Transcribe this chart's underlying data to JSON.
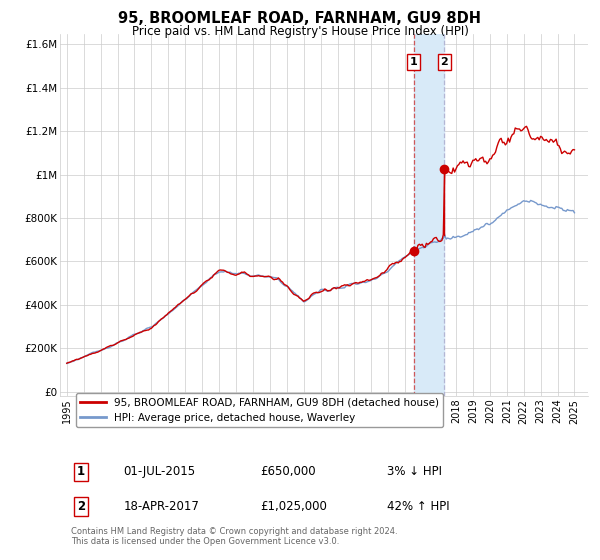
{
  "title": "95, BROOMLEAF ROAD, FARNHAM, GU9 8DH",
  "subtitle": "Price paid vs. HM Land Registry's House Price Index (HPI)",
  "ylabel_ticks": [
    "£0",
    "£200K",
    "£400K",
    "£600K",
    "£800K",
    "£1M",
    "£1.2M",
    "£1.4M",
    "£1.6M"
  ],
  "ytick_values": [
    0,
    200000,
    400000,
    600000,
    800000,
    1000000,
    1200000,
    1400000,
    1600000
  ],
  "ylim": [
    -20000,
    1650000
  ],
  "xlim_year": [
    1994.6,
    2025.8
  ],
  "xtick_years": [
    1995,
    1996,
    1997,
    1998,
    1999,
    2000,
    2001,
    2002,
    2003,
    2004,
    2005,
    2006,
    2007,
    2008,
    2009,
    2010,
    2011,
    2012,
    2013,
    2014,
    2015,
    2016,
    2017,
    2018,
    2019,
    2020,
    2021,
    2022,
    2023,
    2024,
    2025
  ],
  "sale1_year": 2015.5,
  "sale1_price": 650000,
  "sale2_year": 2017.3,
  "sale2_price": 1025000,
  "sale1_date": "01-JUL-2015",
  "sale1_amount": "£650,000",
  "sale1_hpi": "3% ↓ HPI",
  "sale2_date": "18-APR-2017",
  "sale2_amount": "£1,025,000",
  "sale2_hpi": "42% ↑ HPI",
  "legend_label1": "95, BROOMLEAF ROAD, FARNHAM, GU9 8DH (detached house)",
  "legend_label2": "HPI: Average price, detached house, Waverley",
  "footnote": "Contains HM Land Registry data © Crown copyright and database right 2024.\nThis data is licensed under the Open Government Licence v3.0.",
  "line_color_red": "#cc0000",
  "line_color_blue": "#7799cc",
  "highlight_color": "#d8eaf8",
  "sale1_vline_color": "#cc3333",
  "sale2_vline_color": "#aaaacc",
  "sale_box_color": "#cc0000",
  "background_color": "#ffffff",
  "grid_color": "#cccccc"
}
